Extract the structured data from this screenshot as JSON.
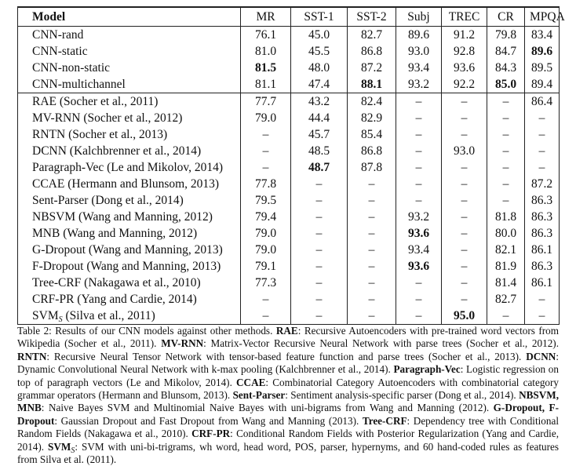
{
  "table": {
    "header": [
      {
        "text": "Model",
        "bold": true
      },
      "MR",
      "SST-1",
      "SST-2",
      "Subj",
      "TREC",
      "CR",
      "MPQA"
    ],
    "groups": [
      {
        "rows": [
          [
            "CNN-rand",
            "76.1",
            "45.0",
            "82.7",
            "89.6",
            "91.2",
            "79.8",
            "83.4"
          ],
          [
            "CNN-static",
            "81.0",
            "45.5",
            "86.8",
            "93.0",
            "92.8",
            "84.7",
            {
              "text": "89.6",
              "bold": true
            }
          ],
          [
            "CNN-non-static",
            {
              "text": "81.5",
              "bold": true
            },
            "48.0",
            "87.2",
            "93.4",
            "93.6",
            "84.3",
            "89.5"
          ],
          [
            "CNN-multichannel",
            "81.1",
            "47.4",
            {
              "text": "88.1",
              "bold": true
            },
            "93.2",
            "92.2",
            {
              "text": "85.0",
              "bold": true
            },
            "89.4"
          ]
        ]
      },
      {
        "rows": [
          [
            "RAE (Socher et al., 2011)",
            "77.7",
            "43.2",
            "82.4",
            "–",
            "–",
            "–",
            "86.4"
          ],
          [
            "MV-RNN (Socher et al., 2012)",
            "79.0",
            "44.4",
            "82.9",
            "–",
            "–",
            "–",
            "–"
          ],
          [
            "RNTN (Socher et al., 2013)",
            "–",
            "45.7",
            "85.4",
            "–",
            "–",
            "–",
            "–"
          ],
          [
            "DCNN (Kalchbrenner et al., 2014)",
            "–",
            "48.5",
            "86.8",
            "–",
            "93.0",
            "–",
            "–"
          ],
          [
            "Paragraph-Vec (Le and Mikolov, 2014)",
            "–",
            {
              "text": "48.7",
              "bold": true
            },
            "87.8",
            "–",
            "–",
            "–",
            "–"
          ],
          [
            "CCAE (Hermann and Blunsom, 2013)",
            "77.8",
            "–",
            "–",
            "–",
            "–",
            "–",
            "87.2"
          ],
          [
            "Sent-Parser (Dong et al., 2014)",
            "79.5",
            "–",
            "–",
            "–",
            "–",
            "–",
            "86.3"
          ],
          [
            "NBSVM (Wang and Manning, 2012)",
            "79.4",
            "–",
            "–",
            "93.2",
            "–",
            "81.8",
            "86.3"
          ],
          [
            "MNB (Wang and Manning, 2012)",
            "79.0",
            "–",
            "–",
            {
              "text": "93.6",
              "bold": true
            },
            "–",
            "80.0",
            "86.3"
          ],
          [
            "G-Dropout (Wang and Manning, 2013)",
            "79.0",
            "–",
            "–",
            "93.4",
            "–",
            "82.1",
            "86.1"
          ],
          [
            "F-Dropout (Wang and Manning, 2013)",
            "79.1",
            "–",
            "–",
            {
              "text": "93.6",
              "bold": true
            },
            "–",
            "81.9",
            "86.3"
          ],
          [
            "Tree-CRF (Nakagawa et al., 2010)",
            "77.3",
            "–",
            "–",
            "–",
            "–",
            "81.4",
            "86.1"
          ],
          [
            "CRF-PR (Yang and Cardie, 2014)",
            "–",
            "–",
            "–",
            "–",
            "–",
            "82.7",
            "–"
          ],
          [
            {
              "parts": [
                {
                  "text": "SVM"
                },
                {
                  "text": "S",
                  "sub": true
                },
                {
                  "text": " (Silva et al., 2011)"
                }
              ]
            },
            "–",
            "–",
            "–",
            "–",
            {
              "text": "95.0",
              "bold": true
            },
            "–",
            "–"
          ]
        ]
      }
    ]
  },
  "caption": [
    {
      "text": "Table 2: Results of our CNN models against other methods. "
    },
    {
      "text": "RAE",
      "bold": true
    },
    {
      "text": ": Recursive Autoencoders with pre-trained word vectors from Wikipedia (Socher et al., 2011). "
    },
    {
      "text": "MV-RNN",
      "bold": true
    },
    {
      "text": ": Matrix-Vector Recursive Neural Network with parse trees (Socher et al., 2012). "
    },
    {
      "text": "RNTN",
      "bold": true
    },
    {
      "text": ": Recursive Neural Tensor Network with tensor-based feature function and parse trees (Socher et al., 2013). "
    },
    {
      "text": "DCNN",
      "bold": true
    },
    {
      "text": ": Dynamic Convolutional Neural Network with k-max pooling (Kalchbrenner et al., 2014). "
    },
    {
      "text": "Paragraph-Vec",
      "bold": true
    },
    {
      "text": ": Logistic regression on top of paragraph vectors (Le and Mikolov, 2014). "
    },
    {
      "text": "CCAE",
      "bold": true
    },
    {
      "text": ": Combinatorial Category Autoencoders with combinatorial category grammar operators (Hermann and Blunsom, 2013). "
    },
    {
      "text": "Sent-Parser",
      "bold": true
    },
    {
      "text": ": Sentiment analysis-specific parser (Dong et al., 2014). "
    },
    {
      "text": "NBSVM, MNB",
      "bold": true
    },
    {
      "text": ": Naive Bayes SVM and Multinomial Naive Bayes with uni-bigrams from Wang and Manning (2012). "
    },
    {
      "text": "G-Dropout, F-Dropout",
      "bold": true
    },
    {
      "text": ": Gaussian Dropout and Fast Dropout from Wang and Manning (2013). "
    },
    {
      "text": "Tree-CRF",
      "bold": true
    },
    {
      "text": ": Dependency tree with Conditional Random Fields (Nakagawa et al., 2010). "
    },
    {
      "text": "CRF-PR",
      "bold": true
    },
    {
      "text": ": Conditional Random Fields with Posterior Regularization (Yang and Cardie, 2014). "
    },
    {
      "text": "SVM",
      "bold": true
    },
    {
      "text": "S",
      "sub": true
    },
    {
      "text": ": SVM with uni-bi-trigrams, wh word, head word, POS, parser, hypernyms, and 60 hand-coded rules as features from Silva et al. (2011)."
    }
  ]
}
